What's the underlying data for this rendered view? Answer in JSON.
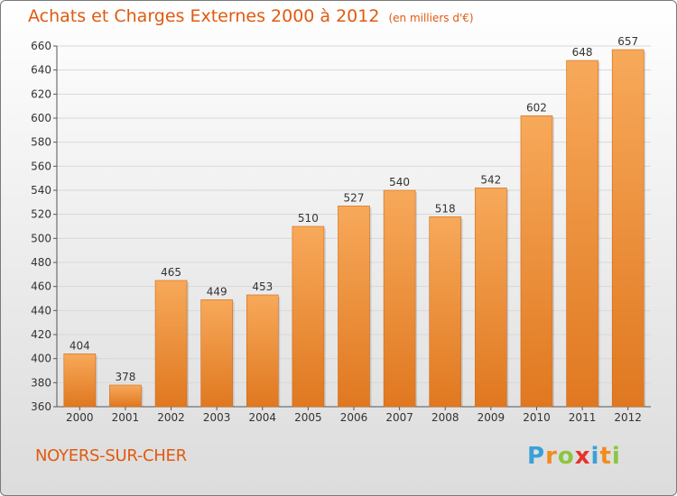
{
  "title": "Achats et Charges Externes 2000 à 2012",
  "subtitle": "(en milliers d'€)",
  "location": "NOYERS-SUR-CHER",
  "logo": {
    "text": "Proxiti",
    "letters": [
      {
        "ch": "P",
        "color": "#3aa0d8"
      },
      {
        "ch": "r",
        "color": "#f28c1e"
      },
      {
        "ch": "o",
        "color": "#8cc63f"
      },
      {
        "ch": "x",
        "color": "#e6332a"
      },
      {
        "ch": "i",
        "color": "#3aa0d8"
      },
      {
        "ch": "t",
        "color": "#f28c1e"
      },
      {
        "ch": "i",
        "color": "#8cc63f"
      }
    ]
  },
  "colors": {
    "title": "#e05a10",
    "bar_top": "#f7a95a",
    "bar_bottom": "#e07820",
    "grid": "#d8d8d8"
  },
  "chart_data": {
    "type": "bar",
    "categories": [
      "2000",
      "2001",
      "2002",
      "2003",
      "2004",
      "2005",
      "2006",
      "2007",
      "2008",
      "2009",
      "2010",
      "2011",
      "2012"
    ],
    "values": [
      404,
      378,
      465,
      449,
      453,
      510,
      527,
      540,
      518,
      542,
      602,
      648,
      657
    ],
    "ylim": [
      360,
      660
    ],
    "yticks": [
      360,
      380,
      400,
      420,
      440,
      460,
      480,
      500,
      520,
      540,
      560,
      580,
      600,
      620,
      640,
      660
    ],
    "grid": true,
    "xlabel": "",
    "ylabel": ""
  }
}
